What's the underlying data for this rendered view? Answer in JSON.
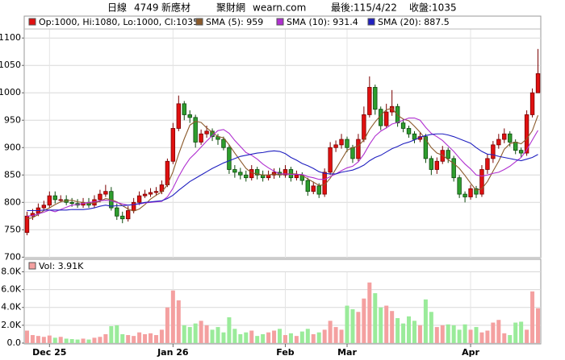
{
  "header": {
    "period": "日線",
    "code": "4749",
    "name": "新應材",
    "site": "聚財網",
    "url": "wearn.com",
    "last_date": "最後:115/4/22",
    "last_close": "收盤:1035"
  },
  "chart_data": [
    {
      "type": "candlestick",
      "legend": "Op:1000, Hi:1080, Lo:1000, Cl:1035",
      "legend_color": "#e01010",
      "categories": [
        null,
        null,
        null,
        null,
        "Dec 25",
        null,
        null,
        null,
        null,
        null,
        null,
        null,
        null,
        null,
        null,
        null,
        null,
        null,
        null,
        null,
        null,
        null,
        null,
        null,
        null,
        null,
        "Jan 26",
        null,
        null,
        null,
        null,
        null,
        null,
        null,
        null,
        null,
        null,
        null,
        null,
        null,
        null,
        null,
        null,
        null,
        null,
        null,
        "Feb",
        null,
        null,
        null,
        null,
        null,
        null,
        null,
        null,
        null,
        null,
        "Mar",
        null,
        null,
        null,
        null,
        null,
        null,
        null,
        null,
        null,
        null,
        null,
        null,
        null,
        null,
        null,
        null,
        null,
        null,
        null,
        null,
        null,
        "Apr",
        null,
        null,
        null,
        null,
        null,
        null,
        null,
        null,
        null,
        null,
        null,
        null
      ],
      "open": [
        745,
        775,
        780,
        790,
        795,
        812,
        805,
        805,
        800,
        798,
        795,
        800,
        795,
        805,
        815,
        820,
        790,
        775,
        770,
        785,
        800,
        812,
        815,
        818,
        820,
        832,
        875,
        935,
        980,
        960,
        955,
        910,
        925,
        930,
        920,
        915,
        900,
        860,
        855,
        850,
        845,
        860,
        850,
        845,
        850,
        855,
        850,
        860,
        845,
        850,
        840,
        820,
        830,
        815,
        855,
        900,
        905,
        915,
        900,
        880,
        915,
        960,
        1010,
        970,
        940,
        965,
        975,
        945,
        935,
        925,
        915,
        920,
        880,
        860,
        875,
        895,
        880,
        845,
        815,
        810,
        825,
        815,
        860,
        880,
        905,
        915,
        925,
        910,
        895,
        890,
        960,
        1000
      ],
      "high": [
        783,
        788,
        798,
        803,
        820,
        820,
        813,
        813,
        808,
        806,
        808,
        808,
        813,
        823,
        832,
        828,
        798,
        783,
        793,
        808,
        820,
        823,
        826,
        828,
        840,
        880,
        945,
        995,
        985,
        968,
        960,
        933,
        940,
        935,
        925,
        920,
        905,
        868,
        863,
        858,
        868,
        865,
        858,
        858,
        862,
        863,
        868,
        865,
        858,
        855,
        845,
        838,
        835,
        862,
        910,
        913,
        925,
        920,
        905,
        925,
        975,
        1030,
        1015,
        975,
        980,
        1005,
        980,
        952,
        940,
        930,
        928,
        925,
        885,
        882,
        903,
        900,
        885,
        850,
        820,
        832,
        830,
        868,
        888,
        912,
        925,
        935,
        930,
        915,
        900,
        968,
        1008,
        1080
      ],
      "low": [
        740,
        768,
        775,
        785,
        790,
        798,
        800,
        795,
        792,
        790,
        790,
        790,
        790,
        800,
        810,
        785,
        768,
        762,
        765,
        780,
        795,
        808,
        810,
        812,
        815,
        828,
        870,
        930,
        950,
        945,
        900,
        905,
        918,
        912,
        905,
        895,
        852,
        845,
        842,
        838,
        840,
        842,
        838,
        840,
        843,
        845,
        845,
        838,
        840,
        832,
        812,
        815,
        808,
        810,
        850,
        892,
        898,
        892,
        872,
        875,
        910,
        955,
        960,
        932,
        935,
        958,
        938,
        928,
        918,
        908,
        910,
        872,
        850,
        852,
        870,
        872,
        838,
        808,
        800,
        805,
        808,
        810,
        852,
        872,
        898,
        908,
        902,
        888,
        882,
        885,
        955,
        1000
      ],
      "close": [
        775,
        780,
        790,
        795,
        812,
        805,
        805,
        800,
        798,
        795,
        800,
        795,
        805,
        815,
        820,
        790,
        775,
        770,
        785,
        800,
        812,
        815,
        818,
        820,
        832,
        875,
        935,
        980,
        960,
        955,
        910,
        925,
        930,
        920,
        915,
        900,
        860,
        855,
        850,
        845,
        860,
        850,
        845,
        850,
        855,
        850,
        860,
        845,
        850,
        840,
        820,
        830,
        815,
        855,
        900,
        905,
        915,
        900,
        880,
        915,
        960,
        1010,
        970,
        940,
        965,
        975,
        945,
        935,
        925,
        915,
        920,
        880,
        860,
        875,
        895,
        880,
        845,
        815,
        810,
        825,
        815,
        860,
        880,
        905,
        915,
        925,
        910,
        895,
        890,
        960,
        1000,
        1035
      ],
      "up_color": "#e01010",
      "up_stroke": "#7a0000",
      "down_color": "#2e9e2e",
      "down_stroke": "#0c4a0c",
      "series": [
        {
          "name": "SMA (5): 959",
          "color": "#8b5a2b",
          "values": [
            770,
            772,
            778,
            785,
            790,
            796,
            801,
            803,
            804,
            801,
            800,
            798,
            799,
            802,
            807,
            805,
            801,
            794,
            788,
            784,
            788,
            796,
            806,
            813,
            819,
            832,
            856,
            888,
            916,
            941,
            948,
            946,
            936,
            928,
            920,
            918,
            905,
            890,
            876,
            862,
            854,
            852,
            850,
            850,
            852,
            850,
            852,
            852,
            852,
            849,
            843,
            837,
            831,
            832,
            844,
            861,
            878,
            895,
            900,
            903,
            914,
            933,
            947,
            959,
            969,
            972,
            959,
            952,
            949,
            939,
            928,
            915,
            900,
            890,
            886,
            878,
            871,
            862,
            849,
            835,
            822,
            825,
            838,
            857,
            875,
            897,
            907,
            910,
            907,
            916,
            931,
            959
          ]
        },
        {
          "name": "SMA (10): 931.4",
          "color": "#b030d0",
          "values": [
            775,
            776,
            779,
            782,
            786,
            783,
            787,
            791,
            795,
            796,
            798,
            800,
            801,
            803,
            804,
            803,
            800,
            797,
            795,
            796,
            797,
            799,
            800,
            801,
            802,
            810,
            826,
            847,
            865,
            880,
            890,
            901,
            912,
            922,
            931,
            933,
            926,
            913,
            902,
            891,
            886,
            879,
            870,
            863,
            857,
            852,
            852,
            851,
            851,
            851,
            847,
            845,
            842,
            842,
            847,
            852,
            858,
            863,
            866,
            874,
            888,
            906,
            921,
            930,
            936,
            943,
            946,
            950,
            954,
            954,
            950,
            937,
            926,
            920,
            913,
            903,
            893,
            881,
            870,
            861,
            850,
            848,
            850,
            853,
            855,
            860,
            866,
            874,
            882,
            896,
            914,
            931.4
          ]
        },
        {
          "name": "SMA (20): 887.5",
          "color": "#2020c0",
          "values": [
            785,
            785,
            785,
            786,
            786,
            786,
            786,
            786,
            787,
            787,
            787,
            788,
            790,
            793,
            795,
            793,
            794,
            794,
            795,
            796,
            798,
            800,
            801,
            802,
            803,
            807,
            813,
            822,
            830,
            838,
            844,
            850,
            856,
            862,
            867,
            872,
            876,
            880,
            884,
            886,
            888,
            890,
            891,
            893,
            894,
            893,
            889,
            882,
            877,
            871,
            867,
            862,
            856,
            853,
            852,
            852,
            855,
            857,
            859,
            863,
            868,
            876,
            882,
            886,
            892,
            898,
            902,
            907,
            910,
            914,
            919,
            922,
            924,
            925,
            925,
            923,
            920,
            916,
            912,
            908,
            900,
            893,
            888,
            887,
            884,
            882,
            880,
            878,
            876,
            879,
            882,
            887.5
          ]
        }
      ],
      "ylim": [
        699,
        1140
      ],
      "yticks": [
        700,
        750,
        800,
        850,
        900,
        950,
        1000,
        1050,
        1100
      ],
      "grid": true
    },
    {
      "type": "bar",
      "legend": "Vol: 3.91K",
      "legend_color": "#f4a0a0",
      "up_color": "#f4a0a0",
      "down_color": "#9aeb9a",
      "values": [
        1400,
        900,
        800,
        700,
        850,
        600,
        700,
        500,
        450,
        400,
        500,
        400,
        600,
        700,
        1000,
        1900,
        2000,
        1000,
        900,
        800,
        1200,
        1000,
        1100,
        900,
        1500,
        4000,
        5900,
        4800,
        2000,
        1800,
        2200,
        2500,
        2000,
        1500,
        1800,
        1200,
        2900,
        1600,
        1000,
        1200,
        1400,
        800,
        1000,
        1200,
        1400,
        1600,
        900,
        1100,
        800,
        1300,
        1600,
        1000,
        1200,
        1500,
        2500,
        1800,
        1500,
        4200,
        3800,
        3500,
        5000,
        6800,
        5600,
        4000,
        4200,
        3600,
        2800,
        2200,
        3000,
        2500,
        2000,
        4900,
        3500,
        1800,
        2000,
        2100,
        2000,
        1500,
        2100,
        1500,
        1800,
        1200,
        1400,
        2300,
        2600,
        1100,
        900,
        2300,
        2400,
        1500,
        5800,
        3910
      ],
      "ylim": [
        0,
        9400
      ],
      "yticks": [
        {
          "value": 0,
          "label": "0.0"
        },
        {
          "value": 2000,
          "label": "2.0K"
        },
        {
          "value": 4000,
          "label": "4.0K"
        },
        {
          "value": 6000,
          "label": "6.0K"
        },
        {
          "value": 8000,
          "label": "8.0K"
        }
      ],
      "grid": true
    }
  ]
}
